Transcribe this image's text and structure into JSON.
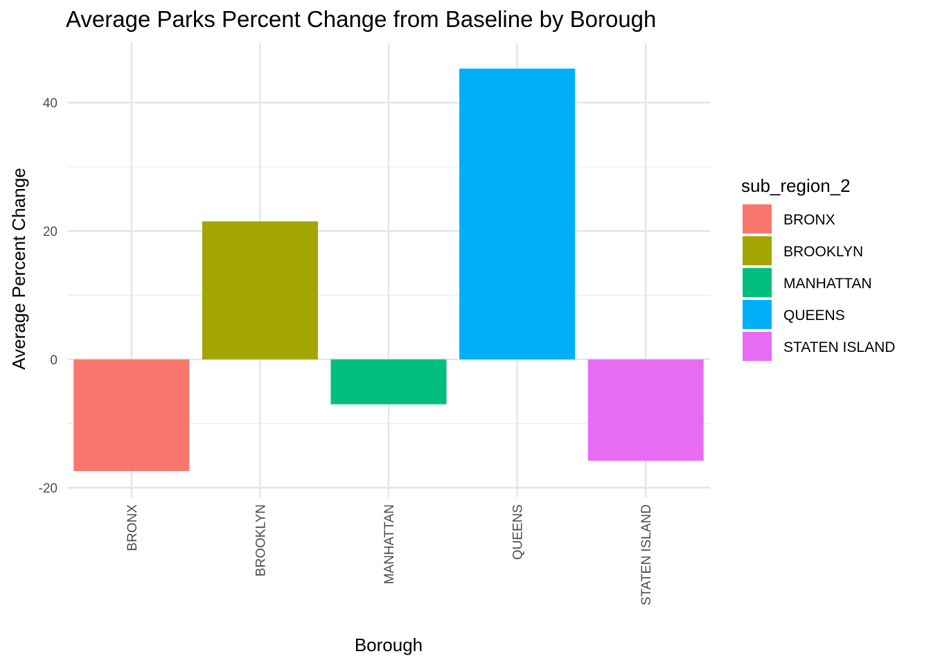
{
  "chart_data": {
    "type": "bar",
    "title": "Average Parks Percent Change from Baseline by Borough",
    "xlabel": "Borough",
    "ylabel": "Average Percent Change",
    "categories": [
      "BRONX",
      "BROOKLYN",
      "MANHATTAN",
      "QUEENS",
      "STATEN ISLAND"
    ],
    "values": [
      -17.4,
      21.5,
      -7.0,
      45.3,
      -15.8
    ],
    "colors": [
      "#F8766D",
      "#A3A500",
      "#00BF7D",
      "#00B0F6",
      "#E76BF3"
    ],
    "ylim": [
      -21.5,
      49.3
    ],
    "yticks": [
      -20,
      0,
      20,
      40
    ],
    "ytick_labels": [
      "-20",
      "0",
      "20",
      "40"
    ],
    "grid": true,
    "legend": {
      "title": "sub_region_2",
      "position": "right",
      "entries": [
        "BRONX",
        "BROOKLYN",
        "MANHATTAN",
        "QUEENS",
        "STATEN ISLAND"
      ]
    }
  }
}
